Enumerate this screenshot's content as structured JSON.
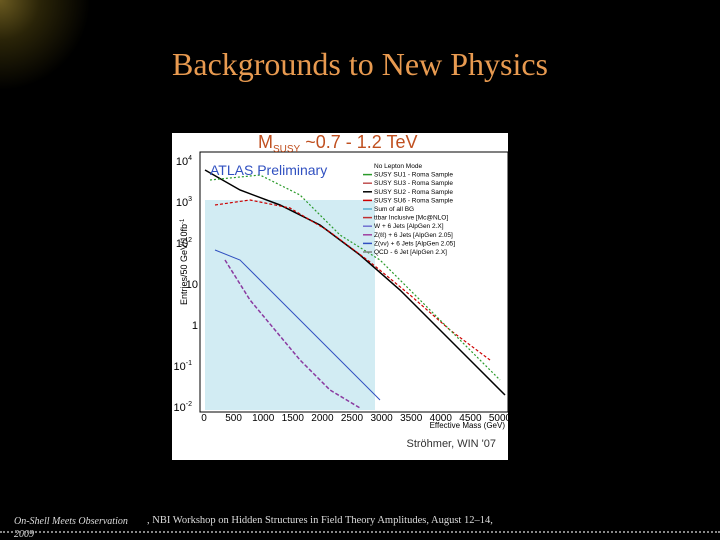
{
  "header": {
    "title": "Backgrounds to New Physics"
  },
  "figure": {
    "title": {
      "main": "M",
      "sub": "SUSY",
      "rest": " ~0.7 - 1.2 TeV"
    },
    "watermark": "ATLAS Preliminary",
    "y_axis_label": "Entries/50 GeV/10fb",
    "y_axis_label_sup": "-1",
    "x_axis_label": "Effective Mass (GeV)",
    "x_ticks": [
      "0",
      "500",
      "1000",
      "1500",
      "2000",
      "2500",
      "3000",
      "3500",
      "4000",
      "4500",
      "5000"
    ],
    "y_ticks": [
      {
        "text": "10",
        "sup": "4"
      },
      {
        "text": "10",
        "sup": "3"
      },
      {
        "text": "10",
        "sup": "2"
      },
      {
        "text": "10"
      },
      {
        "text": "1"
      },
      {
        "text": "10",
        "sup": "-1"
      },
      {
        "text": "10",
        "sup": "-2"
      }
    ],
    "legend": [
      "No Lepton Mode",
      "SUSY SU1 - Roma Sample",
      "SUSY SU3 - Roma Sample",
      "SUSY SU2 - Roma Sample",
      "SUSY SU6 - Roma Sample",
      "Sum of all BG",
      "ttbar Inclusive [Mc@NLO]",
      "W + 6 Jets [AlpGen 2.X]",
      "Z(ℓℓ) + 6 Jets [AlpGen 2.05]",
      "Z(νν) + 6 Jets [AlpGen 2.05]",
      "QCD - 6 Jet [AlpGen 2.X]"
    ],
    "credit": "Ströhmer, WIN '07"
  },
  "footer": {
    "left": [
      "On-Shell Meets Observation",
      "2009"
    ],
    "text": ", NBI Workshop on Hidden Structures in Field Theory Amplitudes, August 12–14,"
  }
}
